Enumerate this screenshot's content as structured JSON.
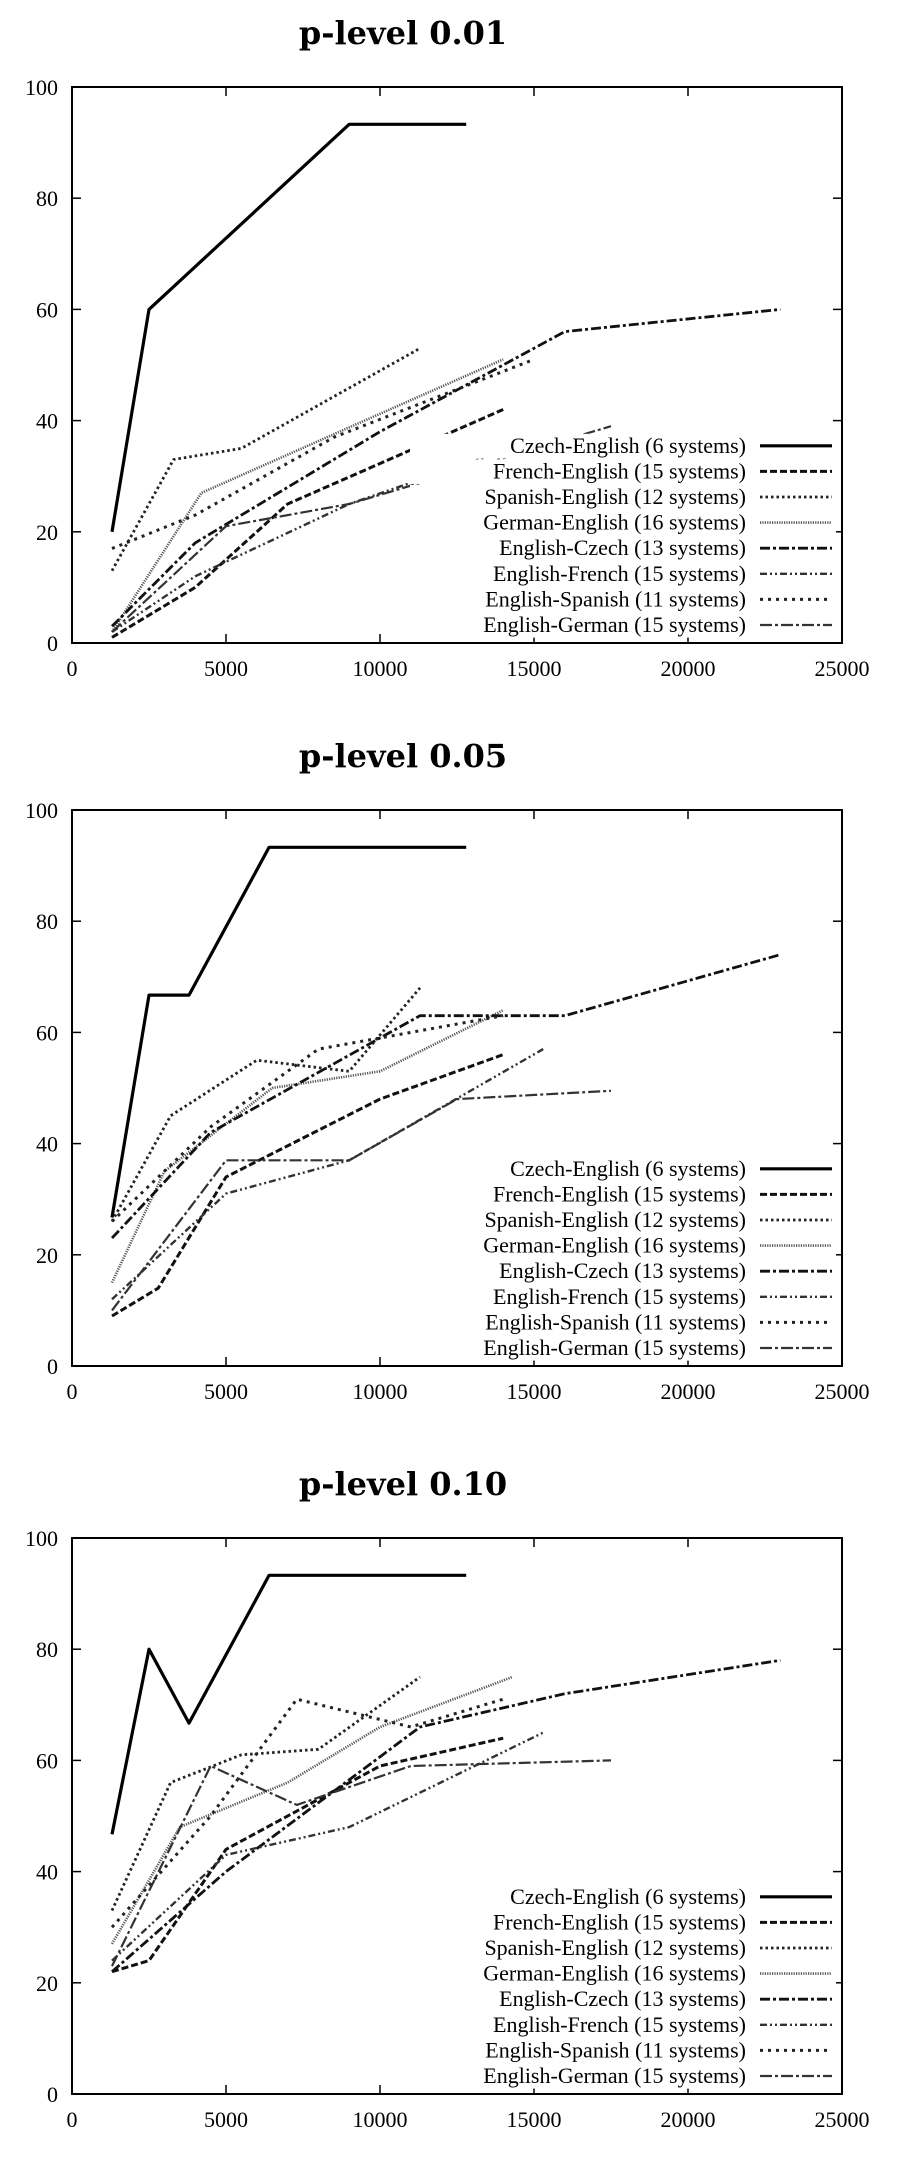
{
  "chart_data": [
    {
      "type": "line",
      "title": "p-level 0.01",
      "xlabel": "",
      "ylabel": "",
      "xlim": [
        0,
        25000
      ],
      "ylim": [
        0,
        100
      ],
      "xticks": [
        0,
        5000,
        10000,
        15000,
        20000,
        25000
      ],
      "yticks": [
        0,
        20,
        40,
        60,
        80,
        100
      ],
      "legend_position": "bottom-right",
      "series": [
        {
          "name": "Czech-English (6 systems)",
          "x": [
            1300,
            2500,
            9000,
            12800
          ],
          "y": [
            20,
            60,
            93.3,
            93.3
          ]
        },
        {
          "name": "French-English (15 systems)",
          "x": [
            1300,
            4000,
            7000,
            14000
          ],
          "y": [
            1,
            10,
            25,
            42
          ]
        },
        {
          "name": "Spanish-English (12 systems)",
          "x": [
            1300,
            3300,
            5500,
            11300
          ],
          "y": [
            13,
            33,
            35,
            53
          ]
        },
        {
          "name": "German-English (16 systems)",
          "x": [
            1300,
            4200,
            9500,
            14000
          ],
          "y": [
            2,
            27,
            40,
            51
          ]
        },
        {
          "name": "English-Czech (13 systems)",
          "x": [
            1300,
            4000,
            10000,
            16000,
            23000
          ],
          "y": [
            3,
            18,
            38,
            56,
            60
          ]
        },
        {
          "name": "English-French (15 systems)",
          "x": [
            1300,
            4000,
            9000,
            15300
          ],
          "y": [
            2,
            12,
            25,
            37
          ]
        },
        {
          "name": "English-Spanish (11 systems)",
          "x": [
            1300,
            4000,
            8500,
            15000
          ],
          "y": [
            17,
            23,
            37,
            51
          ]
        },
        {
          "name": "English-German (15 systems)",
          "x": [
            1300,
            5000,
            9000,
            17500
          ],
          "y": [
            2,
            21,
            25,
            39
          ]
        }
      ]
    },
    {
      "type": "line",
      "title": "p-level 0.05",
      "xlabel": "",
      "ylabel": "",
      "xlim": [
        0,
        25000
      ],
      "ylim": [
        0,
        100
      ],
      "xticks": [
        0,
        5000,
        10000,
        15000,
        20000,
        25000
      ],
      "yticks": [
        0,
        20,
        40,
        60,
        80,
        100
      ],
      "legend_position": "bottom-right",
      "series": [
        {
          "name": "Czech-English (6 systems)",
          "x": [
            1300,
            2500,
            3800,
            6400,
            12800
          ],
          "y": [
            26.7,
            66.7,
            66.7,
            93.3,
            93.3
          ]
        },
        {
          "name": "French-English (15 systems)",
          "x": [
            1300,
            2800,
            5000,
            10000,
            14000
          ],
          "y": [
            9,
            14,
            34,
            48,
            56
          ]
        },
        {
          "name": "Spanish-English (12 systems)",
          "x": [
            1300,
            3200,
            6000,
            9000,
            11300
          ],
          "y": [
            26,
            45,
            55,
            53,
            68
          ]
        },
        {
          "name": "German-English (16 systems)",
          "x": [
            1300,
            3000,
            6500,
            10000,
            14000
          ],
          "y": [
            15,
            35,
            50,
            53,
            64
          ]
        },
        {
          "name": "English-Czech (13 systems)",
          "x": [
            1300,
            4500,
            11300,
            16000,
            23000
          ],
          "y": [
            23,
            42,
            63,
            63,
            74
          ]
        },
        {
          "name": "English-French (15 systems)",
          "x": [
            1300,
            5000,
            9000,
            15300
          ],
          "y": [
            12,
            31,
            37,
            57
          ]
        },
        {
          "name": "English-Spanish (11 systems)",
          "x": [
            1300,
            4500,
            8000,
            14000
          ],
          "y": [
            26,
            43,
            57,
            63
          ]
        },
        {
          "name": "English-German (15 systems)",
          "x": [
            1300,
            5000,
            9000,
            12500,
            17500
          ],
          "y": [
            10,
            37,
            37,
            48,
            49.5
          ]
        }
      ]
    },
    {
      "type": "line",
      "title": "p-level 0.10",
      "xlabel": "",
      "ylabel": "",
      "xlim": [
        0,
        25000
      ],
      "ylim": [
        0,
        100
      ],
      "xticks": [
        0,
        5000,
        10000,
        15000,
        20000,
        25000
      ],
      "yticks": [
        0,
        20,
        40,
        60,
        80,
        100
      ],
      "legend_position": "bottom-right",
      "series": [
        {
          "name": "Czech-English (6 systems)",
          "x": [
            1300,
            2500,
            3800,
            6400,
            12800
          ],
          "y": [
            46.7,
            80,
            66.7,
            93.3,
            93.3
          ]
        },
        {
          "name": "French-English (15 systems)",
          "x": [
            1300,
            2500,
            5000,
            10000,
            14000
          ],
          "y": [
            22,
            24,
            44,
            59,
            64
          ]
        },
        {
          "name": "Spanish-English (12 systems)",
          "x": [
            1300,
            3200,
            5500,
            8000,
            11300
          ],
          "y": [
            33,
            56,
            61,
            62,
            75
          ]
        },
        {
          "name": "German-English (16 systems)",
          "x": [
            1300,
            3500,
            7000,
            10000,
            14300
          ],
          "y": [
            27,
            48,
            56,
            66,
            75
          ]
        },
        {
          "name": "English-Czech (13 systems)",
          "x": [
            1300,
            5000,
            11300,
            16000,
            23000
          ],
          "y": [
            22,
            40,
            66,
            72,
            78
          ]
        },
        {
          "name": "English-French (15 systems)",
          "x": [
            1300,
            5000,
            9000,
            15300
          ],
          "y": [
            24,
            43,
            48,
            65
          ]
        },
        {
          "name": "English-Spanish (11 systems)",
          "x": [
            1300,
            4500,
            7300,
            11000,
            14000
          ],
          "y": [
            30,
            50,
            71,
            66,
            71
          ]
        },
        {
          "name": "English-German (15 systems)",
          "x": [
            1300,
            4500,
            7300,
            11000,
            17500
          ],
          "y": [
            23,
            59,
            52,
            59,
            60
          ]
        }
      ]
    }
  ]
}
